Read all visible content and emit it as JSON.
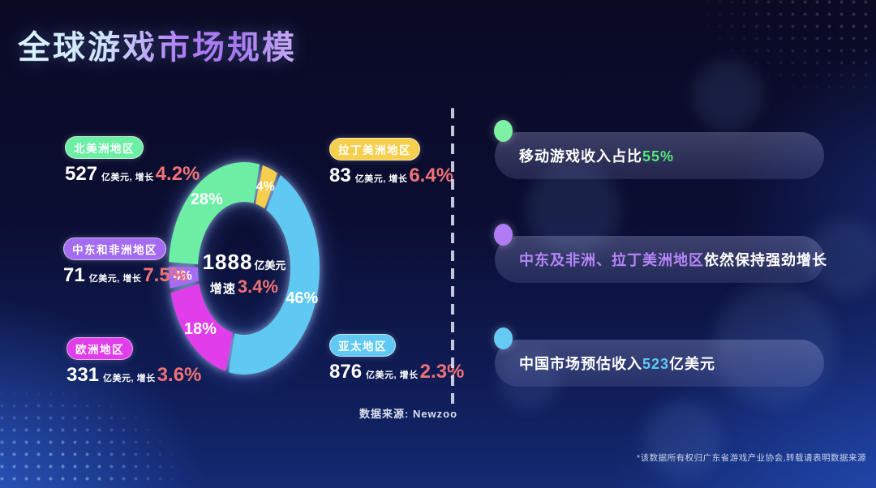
{
  "title": "全球游戏市场规模",
  "colors": {
    "growth_percent": "#ef7276",
    "background_dark": "#0a0a23",
    "background_bright_blue": "#1c3f97"
  },
  "chart_data": {
    "type": "pie",
    "title": "全球游戏市场规模",
    "legend_position": "around-donut",
    "start_angle_deg": 13,
    "center": {
      "total": "1888",
      "unit": "亿美元",
      "growth_prefix": "增速",
      "growth_value": "3.4%"
    },
    "slices": [
      {
        "region": "拉丁美洲地区",
        "percent": 4,
        "pct_label": "4%",
        "value": "83",
        "unit_growth": "亿美元, 增长",
        "growth": "6.4%",
        "color": "#f6cf4e"
      },
      {
        "region": "亚太地区",
        "percent": 46,
        "pct_label": "46%",
        "value": "876",
        "unit_growth": "亿美元, 增长",
        "growth": "2.3%",
        "color": "#5fc9f3"
      },
      {
        "region": "欧洲地区",
        "percent": 18,
        "pct_label": "18%",
        "value": "331",
        "unit_growth": "亿美元, 增长",
        "growth": "3.6%",
        "color": "#e03eea"
      },
      {
        "region": "中东和非洲地区",
        "percent": 4,
        "pct_label": "4%",
        "value": "71",
        "unit_growth": "亿美元, 增长",
        "growth": "7.5%",
        "color": "#a46cf0"
      },
      {
        "region": "北美洲地区",
        "percent": 28,
        "pct_label": "28%",
        "value": "527",
        "unit_growth": "亿美元, 增长",
        "growth": "4.2%",
        "color": "#6cefa4"
      }
    ],
    "source": "数据来源: Newzoo"
  },
  "panel": {
    "items": [
      {
        "dot_color": "#7df2a4",
        "segments": [
          {
            "text": "移动游戏收入占比",
            "color": "#ffffff"
          },
          {
            "text": "55%",
            "color": "#55e77e"
          }
        ]
      },
      {
        "dot_color": "#b07bf5",
        "segments": [
          {
            "text": "中东及非洲、拉丁美洲地区",
            "color": "#b585f8"
          },
          {
            "text": "依然保持强劲增长",
            "color": "#ffffff"
          }
        ]
      },
      {
        "dot_color": "#66cbf4",
        "segments": [
          {
            "text": "中国市场预估收入",
            "color": "#ffffff"
          },
          {
            "text": "523",
            "color": "#5fc9f3"
          },
          {
            "text": "亿美元",
            "color": "#ffffff"
          }
        ]
      }
    ]
  },
  "footnote": "*该数据所有权归广东省游戏产业协会,转载请表明数据来源"
}
